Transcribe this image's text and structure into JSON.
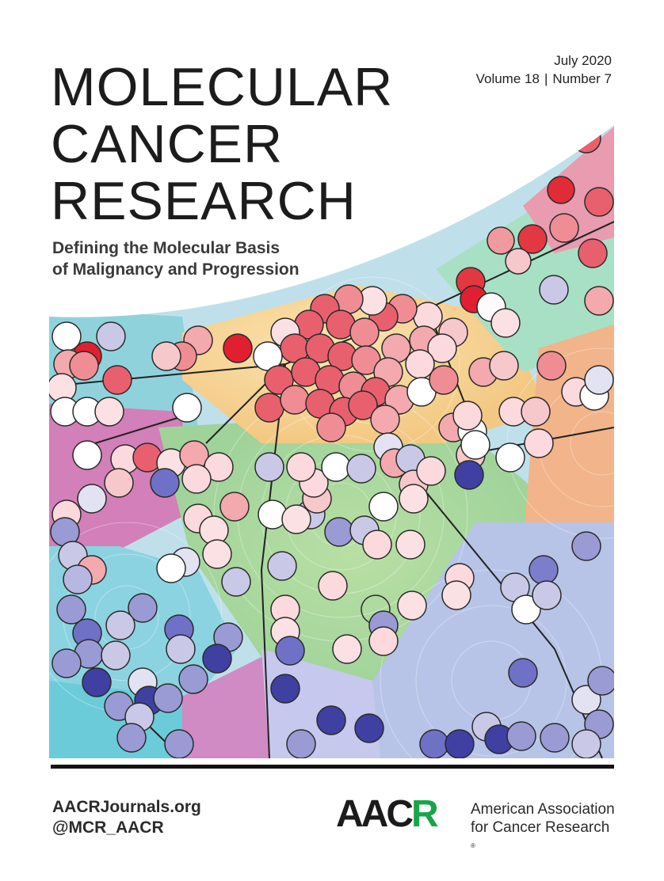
{
  "issue": {
    "date": "July 2020",
    "volume": "Volume 18",
    "number": "Number 7",
    "separator": "|"
  },
  "journal": {
    "title_lines": [
      "MOLECULAR",
      "CANCER",
      "RESEARCH"
    ],
    "tagline_lines": [
      "Defining the Molecular Basis",
      "of Malignancy and Progression"
    ]
  },
  "footer": {
    "website": "AACRJournals.org",
    "twitter": "@MCR_AACR"
  },
  "publisher": {
    "logo_text_a": "AAC",
    "logo_text_r": "R",
    "name_line1": "American Association",
    "name_line2": "for Cancer Research",
    "registered_mark": "®"
  },
  "colors": {
    "logo_green": "#19a44a",
    "rule": "#111111"
  }
}
